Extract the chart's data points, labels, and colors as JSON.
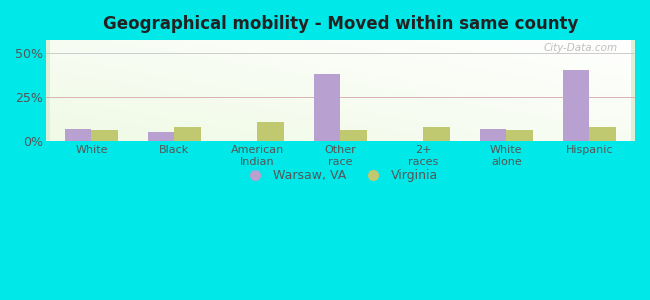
{
  "title": "Geographical mobility - Moved within same county",
  "categories": [
    "White",
    "Black",
    "American\nIndian",
    "Other\nrace",
    "2+\nraces",
    "White\nalone",
    "Hispanic"
  ],
  "warsaw_values": [
    7.0,
    5.0,
    0.0,
    38.0,
    0.0,
    7.0,
    40.0
  ],
  "virginia_values": [
    6.0,
    8.0,
    11.0,
    6.0,
    8.0,
    6.0,
    8.0
  ],
  "warsaw_color": "#b8a0d0",
  "virginia_color": "#c0c870",
  "background_color": "#00e8e8",
  "title_color": "#222222",
  "tick_color": "#555555",
  "ylabel_ticks": [
    "0%",
    "25%",
    "50%"
  ],
  "ylim": [
    0,
    57
  ],
  "yticks": [
    0,
    25,
    50
  ],
  "bar_width": 0.32,
  "legend_warsaw": "Warsaw, VA",
  "legend_virginia": "Virginia",
  "watermark": "City-Data.com"
}
